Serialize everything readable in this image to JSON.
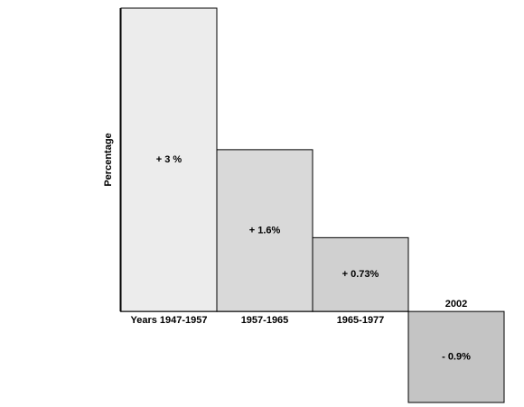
{
  "chart_data": {
    "type": "bar",
    "y_label": "Percentage",
    "categories": [
      "Years 1947-1957",
      "1957-1965",
      "1965-1977",
      "2002"
    ],
    "values": [
      3,
      1.6,
      0.73,
      -0.9
    ],
    "value_labels": [
      "+ 3 %",
      "+ 1.6%",
      "+ 0.73%",
      "- 0.9%"
    ],
    "colors": [
      "#ececec",
      "#d9d9d9",
      "#d0d0d0",
      "#c4c4c4"
    ],
    "ylim": [
      -0.9,
      3
    ]
  }
}
